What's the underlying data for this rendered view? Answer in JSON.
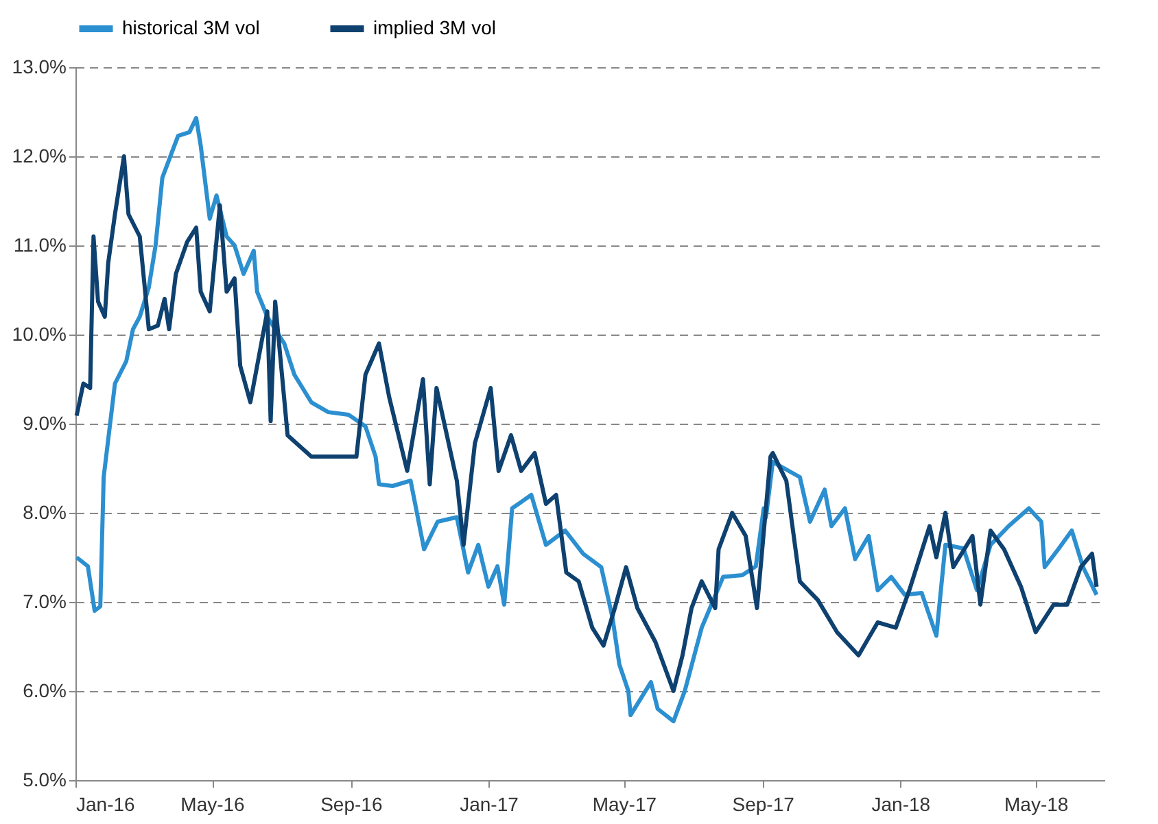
{
  "chart_data": {
    "type": "line",
    "xlim": [
      "2016-01-01",
      "2018-07-01"
    ],
    "xticks": [
      {
        "value": "2016-01-01",
        "label": "Jan-16"
      },
      {
        "value": "2016-05-01",
        "label": "May-16"
      },
      {
        "value": "2016-09-01",
        "label": "Sep-16"
      },
      {
        "value": "2017-01-01",
        "label": "Jan-17"
      },
      {
        "value": "2017-05-01",
        "label": "May-17"
      },
      {
        "value": "2017-09-01",
        "label": "Sep-17"
      },
      {
        "value": "2018-01-01",
        "label": "Jan-18"
      },
      {
        "value": "2018-05-01",
        "label": "May-18"
      }
    ],
    "ylim": [
      5,
      13
    ],
    "yticks": [
      {
        "value": 5,
        "label": "5.0%"
      },
      {
        "value": 6,
        "label": "6.0%"
      },
      {
        "value": 7,
        "label": "7.0%"
      },
      {
        "value": 8,
        "label": "8.0%"
      },
      {
        "value": 9,
        "label": "9.0%"
      },
      {
        "value": 10,
        "label": "10.0%"
      },
      {
        "value": 11,
        "label": "11.0%"
      },
      {
        "value": 12,
        "label": "12.0%"
      },
      {
        "value": 13,
        "label": "13.0%"
      }
    ],
    "grid": "y",
    "legend": "top",
    "line_style": "solid",
    "series": [
      {
        "name": "historical 3M vol",
        "color": "#2b8fd0",
        "x": [
          "2016-01-02",
          "2016-01-12",
          "2016-01-18",
          "2016-01-23",
          "2016-01-26",
          "2016-02-05",
          "2016-02-15",
          "2016-02-21",
          "2016-02-27",
          "2016-03-06",
          "2016-03-12",
          "2016-03-18",
          "2016-03-26",
          "2016-04-01",
          "2016-04-11",
          "2016-04-17",
          "2016-04-21",
          "2016-04-29",
          "2016-05-05",
          "2016-05-14",
          "2016-05-21",
          "2016-05-29",
          "2016-06-07",
          "2016-06-10",
          "2016-06-19",
          "2016-07-04",
          "2016-07-13",
          "2016-07-28",
          "2016-08-12",
          "2016-08-30",
          "2016-09-14",
          "2016-09-23",
          "2016-09-26",
          "2016-10-08",
          "2016-10-24",
          "2016-11-05",
          "2016-11-17",
          "2016-12-04",
          "2016-12-14",
          "2016-12-23",
          "2017-01-01",
          "2017-01-09",
          "2017-01-15",
          "2017-01-22",
          "2017-02-08",
          "2017-02-21",
          "2017-03-10",
          "2017-03-26",
          "2017-04-11",
          "2017-04-21",
          "2017-04-27",
          "2017-05-05",
          "2017-05-07",
          "2017-05-25",
          "2017-05-31",
          "2017-06-14",
          "2017-06-24",
          "2017-07-09",
          "2017-07-28",
          "2017-08-14",
          "2017-08-26",
          "2017-09-02",
          "2017-09-04",
          "2017-09-10",
          "2017-10-04",
          "2017-10-13",
          "2017-10-26",
          "2017-11-01",
          "2017-11-13",
          "2017-11-22",
          "2017-12-04",
          "2017-12-12",
          "2017-12-24",
          "2018-01-05",
          "2018-01-20",
          "2018-02-02",
          "2018-02-10",
          "2018-02-26",
          "2018-03-10",
          "2018-03-22",
          "2018-04-07",
          "2018-04-25",
          "2018-05-06",
          "2018-05-09",
          "2018-05-21",
          "2018-06-02",
          "2018-06-12",
          "2018-06-24"
        ],
        "values": [
          7.5,
          7.4,
          6.9,
          6.95,
          8.4,
          9.45,
          9.7,
          10.06,
          10.2,
          10.53,
          11.0,
          11.76,
          12.03,
          12.23,
          12.27,
          12.43,
          12.12,
          11.3,
          11.56,
          11.1,
          11.0,
          10.68,
          10.94,
          10.48,
          10.2,
          9.9,
          9.55,
          9.24,
          9.13,
          9.1,
          8.97,
          8.63,
          8.32,
          8.3,
          8.36,
          7.59,
          7.9,
          7.95,
          7.33,
          7.64,
          7.17,
          7.4,
          6.97,
          8.05,
          8.2,
          7.64,
          7.8,
          7.54,
          7.39,
          6.82,
          6.3,
          6.0,
          5.73,
          6.1,
          5.8,
          5.66,
          6.0,
          6.71,
          7.28,
          7.3,
          7.4,
          8.05,
          7.95,
          8.57,
          8.4,
          7.9,
          8.26,
          7.85,
          8.05,
          7.48,
          7.74,
          7.13,
          7.28,
          7.08,
          7.1,
          6.62,
          7.64,
          7.6,
          7.13,
          7.64,
          7.85,
          8.05,
          7.9,
          7.39,
          7.59,
          7.8,
          7.39,
          7.08
        ]
      },
      {
        "name": "implied 3M vol",
        "color": "#0e416f",
        "x": [
          "2016-01-02",
          "2016-01-08",
          "2016-01-14",
          "2016-01-17",
          "2016-01-21",
          "2016-01-27",
          "2016-01-30",
          "2016-02-05",
          "2016-02-13",
          "2016-02-17",
          "2016-02-27",
          "2016-03-06",
          "2016-03-14",
          "2016-03-20",
          "2016-03-24",
          "2016-03-30",
          "2016-04-09",
          "2016-04-17",
          "2016-04-21",
          "2016-04-29",
          "2016-05-08",
          "2016-05-14",
          "2016-05-21",
          "2016-05-26",
          "2016-06-04",
          "2016-06-19",
          "2016-06-22",
          "2016-06-26",
          "2016-07-07",
          "2016-07-28",
          "2016-09-06",
          "2016-09-14",
          "2016-09-26",
          "2016-10-05",
          "2016-10-21",
          "2016-11-04",
          "2016-11-10",
          "2016-11-16",
          "2016-12-04",
          "2016-12-10",
          "2016-12-20",
          "2017-01-03",
          "2017-01-10",
          "2017-01-21",
          "2017-01-30",
          "2017-02-11",
          "2017-02-21",
          "2017-03-02",
          "2017-03-11",
          "2017-03-22",
          "2017-04-03",
          "2017-04-13",
          "2017-04-23",
          "2017-05-03",
          "2017-05-13",
          "2017-05-29",
          "2017-06-14",
          "2017-06-22",
          "2017-06-30",
          "2017-07-09",
          "2017-07-21",
          "2017-07-24",
          "2017-08-05",
          "2017-08-17",
          "2017-08-27",
          "2017-09-08",
          "2017-09-10",
          "2017-09-22",
          "2017-10-04",
          "2017-10-20",
          "2017-11-06",
          "2017-11-25",
          "2017-12-12",
          "2017-12-28",
          "2018-01-09",
          "2018-01-27",
          "2018-02-02",
          "2018-02-10",
          "2018-02-17",
          "2018-03-06",
          "2018-03-13",
          "2018-03-22",
          "2018-04-03",
          "2018-04-18",
          "2018-05-01",
          "2018-05-17",
          "2018-05-29",
          "2018-06-10",
          "2018-06-20",
          "2018-06-24"
        ],
        "values": [
          9.09,
          9.45,
          9.4,
          11.1,
          10.37,
          10.2,
          10.8,
          11.35,
          12.0,
          11.35,
          11.1,
          10.06,
          10.1,
          10.4,
          10.06,
          10.68,
          11.04,
          11.2,
          10.48,
          10.26,
          11.45,
          10.48,
          10.63,
          9.65,
          9.24,
          10.26,
          9.03,
          10.37,
          8.87,
          8.63,
          8.63,
          9.55,
          9.9,
          9.3,
          8.47,
          9.5,
          8.32,
          9.4,
          8.36,
          7.64,
          8.78,
          9.4,
          8.47,
          8.87,
          8.47,
          8.67,
          8.1,
          8.2,
          7.33,
          7.23,
          6.71,
          6.51,
          6.93,
          7.39,
          6.93,
          6.55,
          6.0,
          6.4,
          6.93,
          7.23,
          6.93,
          7.59,
          8.0,
          7.74,
          6.93,
          8.63,
          8.67,
          8.36,
          7.23,
          7.02,
          6.66,
          6.4,
          6.77,
          6.71,
          7.13,
          7.85,
          7.5,
          8.0,
          7.39,
          7.74,
          6.97,
          7.8,
          7.59,
          7.17,
          6.66,
          6.97,
          6.97,
          7.39,
          7.54,
          7.17
        ]
      }
    ]
  }
}
